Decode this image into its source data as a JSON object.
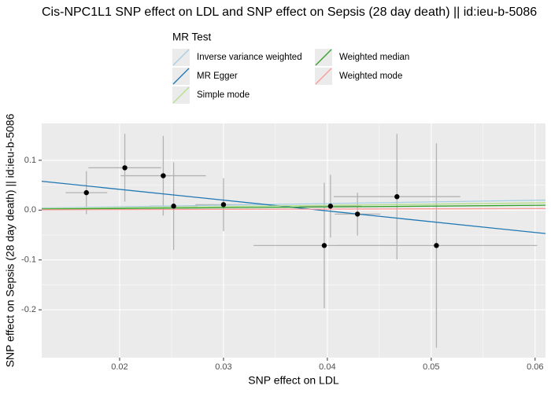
{
  "chart_data": {
    "type": "scatter",
    "title": "Cis-NPC1L1 SNP effect on LDL and SNP effect on Sepsis (28 day death) || id:ieu-b-5086",
    "xlabel": "SNP effect on LDL",
    "ylabel": "SNP effect on Sepsis (28 day death) || id:ieu-b-5086",
    "xlim": [
      0.0125,
      0.061
    ],
    "ylim": [
      -0.296,
      0.174
    ],
    "xticks": [
      0.02,
      0.03,
      0.04,
      0.05,
      0.06
    ],
    "yticks": [
      0.1,
      {
        "value": 0,
        "label": "0.0"
      },
      -0.1,
      -0.2
    ],
    "grid": true,
    "x": [
      0.0168,
      0.0205,
      0.0242,
      0.0252,
      0.03,
      0.0397,
      0.0403,
      0.0429,
      0.0467,
      0.0505
    ],
    "values": [
      0.035,
      0.085,
      0.069,
      0.008,
      0.011,
      -0.071,
      0.008,
      -0.008,
      0.027,
      -0.071
    ],
    "x_err": [
      0.002,
      0.0035,
      0.0041,
      0.0023,
      0.0027,
      0.0068,
      0.003,
      0.0022,
      0.0061,
      0.0097
    ],
    "y_err": [
      0.043,
      0.068,
      0.08,
      0.088,
      0.053,
      0.126,
      0.063,
      0.043,
      0.126,
      0.205
    ],
    "point_color": "#000000",
    "error_color": "#b3b3b3",
    "legend_title": "MR Test",
    "lines": [
      {
        "name": "Inverse variance weighted",
        "color": "#a6cee3",
        "intercept": 0,
        "slope": 0.33
      },
      {
        "name": "MR Egger",
        "color": "#1f78b4",
        "intercept": 0.085,
        "slope": -2.165
      },
      {
        "name": "Simple mode",
        "color": "#b2df8a",
        "intercept": 0,
        "slope": 0.24
      },
      {
        "name": "Weighted median",
        "color": "#33a02c",
        "intercept": 0,
        "slope": 0.16
      },
      {
        "name": "Weighted mode",
        "color": "#fb9a99",
        "intercept": 0,
        "slope": 0.05
      }
    ]
  }
}
